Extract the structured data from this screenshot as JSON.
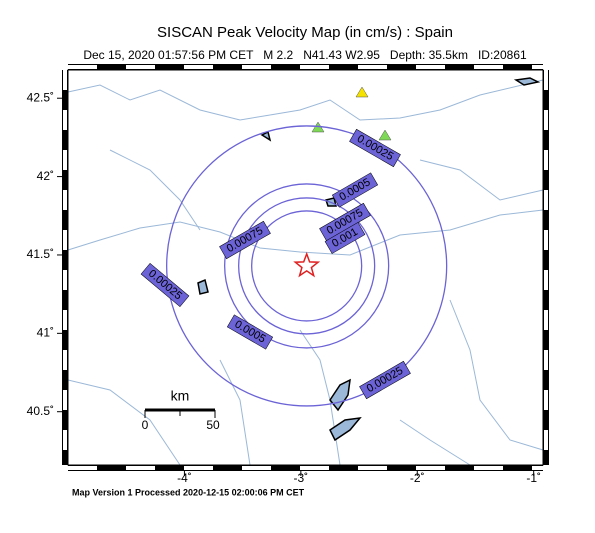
{
  "title": "SISCAN Peak Velocity Map (in cm/s) : Spain",
  "subtitle": "Dec 15, 2020 01:57:56 PM CET   M 2.2   N41.43 W2.95   Depth: 35.5km   ID:20861",
  "map": {
    "xlim": [
      -5,
      -0.92
    ],
    "ylim": [
      40.16,
      42.68
    ],
    "xticks": [
      {
        "value": -4,
        "label": "-4˚"
      },
      {
        "value": -3,
        "label": "-3˚"
      },
      {
        "value": -2,
        "label": "-2˚"
      },
      {
        "value": -1,
        "label": "-1˚"
      }
    ],
    "yticks": [
      {
        "value": 40.5,
        "label": "40.5˚"
      },
      {
        "value": 41,
        "label": "41˚"
      },
      {
        "value": 41.5,
        "label": "41.5˚"
      },
      {
        "value": 42,
        "label": "42˚"
      },
      {
        "value": 42.5,
        "label": "42.5˚"
      }
    ],
    "epicenter": [
      -2.95,
      41.43
    ],
    "contours": [
      {
        "level": 0.001
      },
      {
        "level": 0.00075
      },
      {
        "level": 0.0005
      },
      {
        "level": 0.00025
      }
    ]
  },
  "scale_bar": {
    "label": "km",
    "ticks": [
      0,
      50
    ]
  },
  "footer": "Map Version 1 Processed 2020-12-15 02:00:06 PM CET"
}
